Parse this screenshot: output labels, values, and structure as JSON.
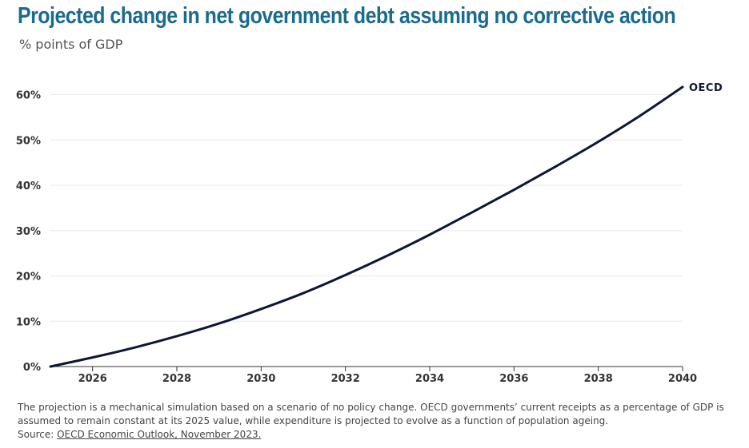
{
  "title": "Projected change in net government debt assuming no corrective action",
  "subtitle": "% points of GDP",
  "footnote": {
    "note": "The projection is a mechanical simulation based on a scenario of no policy change. OECD governments’ current receipts as a percentage of GDP is assumed to remain constant at its 2025 value, while expenditure is projected to evolve as a function of population ageing.",
    "source_label": "Source:",
    "source_link": "OECD Economic Outlook, November 2023."
  },
  "colors": {
    "title": "#1a6b8f",
    "line": "#0d1633",
    "grid": "#e8e8e8"
  },
  "chart_data": {
    "type": "line",
    "title": "Projected change in net government debt assuming no corrective action",
    "ylabel": "% points of GDP",
    "xlabel": "",
    "xlim": [
      2025,
      2040
    ],
    "ylim": [
      0,
      60
    ],
    "x_ticks": [
      2026,
      2028,
      2030,
      2032,
      2034,
      2036,
      2038,
      2040
    ],
    "x_tick_labels": [
      "2026",
      "2028",
      "2030",
      "2032",
      "2034",
      "2036",
      "2038",
      "2040"
    ],
    "y_ticks": [
      0,
      10,
      20,
      30,
      40,
      50,
      60
    ],
    "y_tick_labels": [
      "0%",
      "10%",
      "20%",
      "30%",
      "40%",
      "50%",
      "60%"
    ],
    "grid": true,
    "series": [
      {
        "name": "OECD",
        "x": [
          2025,
          2026,
          2027,
          2028,
          2029,
          2030,
          2031,
          2032,
          2033,
          2034,
          2035,
          2036,
          2037,
          2038,
          2039,
          2040
        ],
        "values": [
          0,
          2,
          4.2,
          6.7,
          9.5,
          12.7,
          16.2,
          20.2,
          24.5,
          29.1,
          34.0,
          39.0,
          44.2,
          49.6,
          55.4,
          61.7
        ]
      }
    ]
  }
}
